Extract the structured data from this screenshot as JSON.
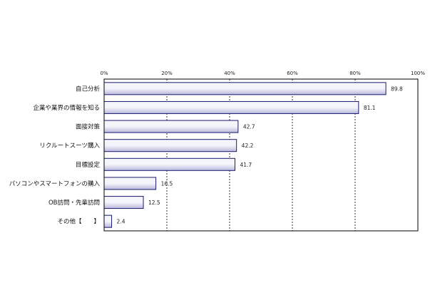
{
  "chart_data": {
    "type": "bar",
    "orientation": "horizontal",
    "categories": [
      "自己分析",
      "企業や業界の情報を知る",
      "面接対策",
      "リクルートスーツ購入",
      "目標設定",
      "パソコンやスマートフォンの購入",
      "OB訪問・先輩訪問",
      "その他【　　】"
    ],
    "values": [
      89.8,
      81.1,
      42.7,
      42.2,
      41.7,
      16.5,
      12.5,
      2.4
    ],
    "value_labels": [
      "89.8",
      "81.1",
      "42.7",
      "42.2",
      "41.7",
      "16.5",
      "12.5",
      "2.4"
    ],
    "xlim": [
      0,
      100
    ],
    "xticks": [
      0,
      20,
      40,
      60,
      80,
      100
    ],
    "xtick_labels": [
      "0%",
      "20%",
      "40%",
      "60%",
      "80%",
      "100%"
    ],
    "axis_position": "top",
    "grid": "vertical dashed",
    "legend": "none",
    "title": "",
    "xlabel": "",
    "ylabel": "",
    "colors": {
      "bar_fill_light": "#f4f4fb",
      "bar_fill_dark": "#b8b8dc",
      "bar_stroke": "#1a1a6e",
      "frame": "#000000",
      "grid": "#000000"
    }
  }
}
